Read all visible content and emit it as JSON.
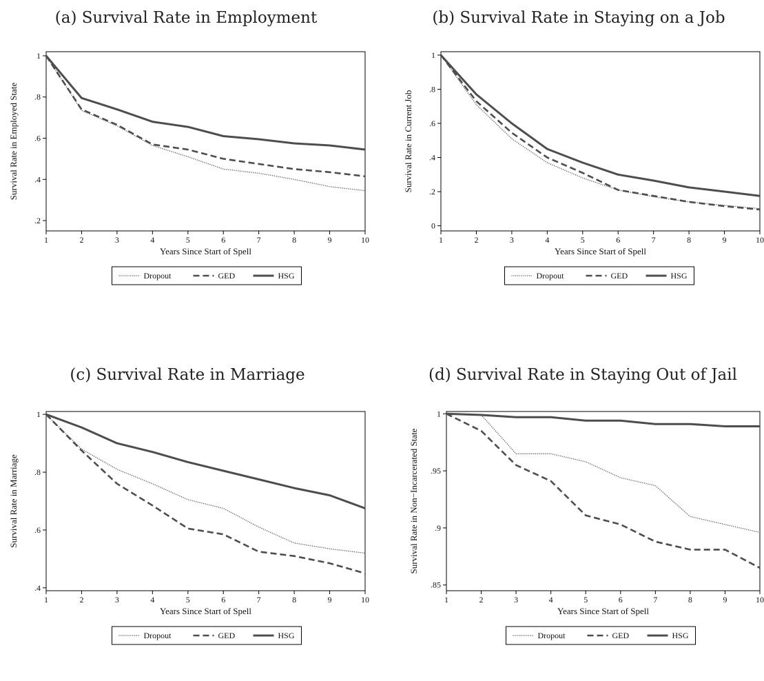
{
  "chart_data": [
    {
      "type": "line",
      "title": "(a) Survival Rate in Employment",
      "xlabel": "Years Since Start of Spell",
      "ylabel": "Survival Rate in Employed State",
      "x": [
        1,
        2,
        3,
        4,
        5,
        6,
        7,
        8,
        9,
        10
      ],
      "xlim": [
        1,
        10
      ],
      "ylim": [
        0.15,
        1.02
      ],
      "yticks": [
        0.2,
        0.4,
        0.6,
        0.8,
        1.0
      ],
      "ytick_labels": [
        ".2",
        ".4",
        ".6",
        ".8",
        "1"
      ],
      "grid": false,
      "legend_position": "bottom",
      "series": [
        {
          "name": "Dropout",
          "style": "dotted",
          "values": [
            1.0,
            0.735,
            0.66,
            0.565,
            0.51,
            0.45,
            0.43,
            0.4,
            0.365,
            0.345
          ]
        },
        {
          "name": "GED",
          "style": "dashed",
          "values": [
            1.0,
            0.74,
            0.665,
            0.57,
            0.545,
            0.5,
            0.475,
            0.45,
            0.435,
            0.415
          ]
        },
        {
          "name": "HSG",
          "style": "solid",
          "values": [
            1.0,
            0.795,
            0.74,
            0.68,
            0.655,
            0.61,
            0.595,
            0.575,
            0.565,
            0.545
          ]
        }
      ]
    },
    {
      "type": "line",
      "title": "(b) Survival Rate in Staying on a Job",
      "xlabel": "Years Since Start of Spell",
      "ylabel": "Survival Rate in Current Job",
      "x": [
        1,
        2,
        3,
        4,
        5,
        6,
        7,
        8,
        9,
        10
      ],
      "xlim": [
        1,
        10
      ],
      "ylim": [
        -0.03,
        1.02
      ],
      "yticks": [
        0,
        0.2,
        0.4,
        0.6,
        0.8,
        1.0
      ],
      "ytick_labels": [
        "0",
        ".2",
        ".4",
        ".6",
        ".8",
        "1"
      ],
      "grid": false,
      "legend_position": "bottom",
      "series": [
        {
          "name": "Dropout",
          "style": "dotted",
          "values": [
            1.0,
            0.71,
            0.51,
            0.37,
            0.28,
            0.21,
            0.17,
            0.14,
            0.12,
            0.1
          ]
        },
        {
          "name": "GED",
          "style": "dashed",
          "values": [
            1.0,
            0.73,
            0.545,
            0.4,
            0.31,
            0.21,
            0.175,
            0.14,
            0.115,
            0.095
          ]
        },
        {
          "name": "HSG",
          "style": "solid",
          "values": [
            1.0,
            0.77,
            0.6,
            0.45,
            0.37,
            0.3,
            0.265,
            0.225,
            0.2,
            0.175
          ]
        }
      ]
    },
    {
      "type": "line",
      "title": "(c) Survival Rate in Marriage",
      "xlabel": "Years Since Start of Spell",
      "ylabel": "Survival Rate in Marriage",
      "x": [
        1,
        2,
        3,
        4,
        5,
        6,
        7,
        8,
        9,
        10
      ],
      "xlim": [
        1,
        10
      ],
      "ylim": [
        0.39,
        1.01
      ],
      "yticks": [
        0.4,
        0.6,
        0.8,
        1.0
      ],
      "ytick_labels": [
        ".4",
        ".6",
        ".8",
        "1"
      ],
      "grid": false,
      "legend_position": "bottom",
      "series": [
        {
          "name": "Dropout",
          "style": "dotted",
          "values": [
            1.0,
            0.88,
            0.81,
            0.76,
            0.705,
            0.675,
            0.61,
            0.555,
            0.535,
            0.52
          ]
        },
        {
          "name": "GED",
          "style": "dashed",
          "values": [
            1.0,
            0.875,
            0.76,
            0.685,
            0.605,
            0.585,
            0.525,
            0.51,
            0.485,
            0.45
          ]
        },
        {
          "name": "HSG",
          "style": "solid",
          "values": [
            1.0,
            0.955,
            0.9,
            0.87,
            0.835,
            0.805,
            0.775,
            0.745,
            0.72,
            0.675
          ]
        }
      ]
    },
    {
      "type": "line",
      "title": "(d) Survival Rate in Staying Out of Jail",
      "xlabel": "Years Since Start of Spell",
      "ylabel": "Survival Rate in Non−Incarcerated State",
      "x": [
        1,
        2,
        3,
        4,
        5,
        6,
        7,
        8,
        9,
        10
      ],
      "xlim": [
        1,
        10
      ],
      "ylim": [
        0.845,
        1.002
      ],
      "yticks": [
        0.85,
        0.9,
        0.95,
        1.0
      ],
      "ytick_labels": [
        ".85",
        ".9",
        ".95",
        "1"
      ],
      "grid": false,
      "legend_position": "bottom",
      "series": [
        {
          "name": "Dropout",
          "style": "dotted",
          "values": [
            1.0,
            0.999,
            0.965,
            0.965,
            0.958,
            0.944,
            0.937,
            0.91,
            0.903,
            0.896
          ]
        },
        {
          "name": "GED",
          "style": "dashed",
          "values": [
            1.0,
            0.985,
            0.955,
            0.941,
            0.911,
            0.903,
            0.888,
            0.881,
            0.881,
            0.865
          ]
        },
        {
          "name": "HSG",
          "style": "solid",
          "values": [
            1.0,
            0.999,
            0.997,
            0.997,
            0.994,
            0.994,
            0.991,
            0.991,
            0.989,
            0.989
          ]
        }
      ]
    }
  ],
  "colors": {
    "line": "#4d4d4d",
    "axis": "#000000",
    "background": "#ffffff"
  }
}
